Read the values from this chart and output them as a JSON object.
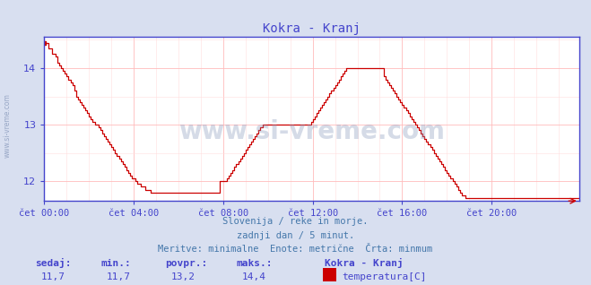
{
  "title": "Kokra - Kranj",
  "title_color": "#4444cc",
  "bg_color": "#d8dff0",
  "plot_bg_color": "#ffffff",
  "line_color": "#cc0000",
  "line_width": 1.0,
  "axis_color": "#4444cc",
  "grid_color_major": "#ffbbbb",
  "grid_color_minor": "#ffdddd",
  "xlim": [
    0,
    287
  ],
  "ylim": [
    11.65,
    14.55
  ],
  "yticks": [
    12,
    13,
    14
  ],
  "xtick_labels": [
    "čet 00:00",
    "čet 04:00",
    "čet 08:00",
    "čet 12:00",
    "čet 16:00",
    "čet 20:00"
  ],
  "xtick_positions": [
    0,
    48,
    96,
    144,
    192,
    240
  ],
  "xlabel_color": "#4444cc",
  "ylabel_color": "#4444cc",
  "watermark": "www.si-vreme.com",
  "watermark_color": "#8899bb",
  "watermark_alpha": 0.35,
  "sub_text1": "Slovenija / reke in morje.",
  "sub_text2": "zadnji dan / 5 minut.",
  "sub_text3": "Meritve: minimalne  Enote: metrične  Črta: minmum",
  "sub_text_color": "#4477aa",
  "bottom_labels": [
    "sedaj:",
    "min.:",
    "povpr.:",
    "maks.:"
  ],
  "bottom_values": [
    "11,7",
    "11,7",
    "13,2",
    "14,4"
  ],
  "bottom_station": "Kokra - Kranj",
  "bottom_measure": "temperatura[C]",
  "bottom_color": "#4444cc",
  "bottom_value_color": "#4444cc",
  "legend_rect_color": "#cc0000",
  "side_text": "www.si-vreme.com",
  "side_text_color": "#8899bb",
  "y_data": [
    14.45,
    14.45,
    14.35,
    14.35,
    14.25,
    14.25,
    14.2,
    14.1,
    14.05,
    14.0,
    13.95,
    13.9,
    13.85,
    13.8,
    13.75,
    13.7,
    13.6,
    13.5,
    13.45,
    13.4,
    13.35,
    13.3,
    13.25,
    13.2,
    13.15,
    13.1,
    13.05,
    13.0,
    13.0,
    12.95,
    12.9,
    12.85,
    12.8,
    12.75,
    12.7,
    12.65,
    12.6,
    12.55,
    12.5,
    12.45,
    12.4,
    12.35,
    12.3,
    12.25,
    12.2,
    12.15,
    12.1,
    12.05,
    12.05,
    12.0,
    11.95,
    11.95,
    11.9,
    11.9,
    11.85,
    11.85,
    11.85,
    11.8,
    11.8,
    11.8,
    11.8,
    11.8,
    11.8,
    11.8,
    11.8,
    11.8,
    11.8,
    11.8,
    11.8,
    11.8,
    11.8,
    11.8,
    11.8,
    11.8,
    11.8,
    11.8,
    11.8,
    11.8,
    11.8,
    11.8,
    11.8,
    11.8,
    11.8,
    11.8,
    11.8,
    11.8,
    11.8,
    11.8,
    11.8,
    11.8,
    11.8,
    11.8,
    11.8,
    11.8,
    12.0,
    12.0,
    12.0,
    12.0,
    12.05,
    12.1,
    12.15,
    12.2,
    12.25,
    12.3,
    12.35,
    12.4,
    12.45,
    12.5,
    12.55,
    12.6,
    12.65,
    12.7,
    12.75,
    12.8,
    12.85,
    12.9,
    12.95,
    13.0,
    13.0,
    13.0,
    13.0,
    13.0,
    13.0,
    13.0,
    13.0,
    13.0,
    13.0,
    13.0,
    13.0,
    13.0,
    13.0,
    13.0,
    13.0,
    13.0,
    13.0,
    13.0,
    13.0,
    13.0,
    13.0,
    13.0,
    13.0,
    13.0,
    13.0,
    13.05,
    13.1,
    13.15,
    13.2,
    13.25,
    13.3,
    13.35,
    13.4,
    13.45,
    13.5,
    13.55,
    13.6,
    13.65,
    13.7,
    13.75,
    13.8,
    13.85,
    13.9,
    13.95,
    14.0,
    14.0,
    14.0,
    14.0,
    14.0,
    14.0,
    14.0,
    14.0,
    14.0,
    14.0,
    14.0,
    14.0,
    14.0,
    14.0,
    14.0,
    14.0,
    14.0,
    14.0,
    14.0,
    14.0,
    13.85,
    13.8,
    13.75,
    13.7,
    13.65,
    13.6,
    13.55,
    13.5,
    13.45,
    13.4,
    13.35,
    13.3,
    13.25,
    13.2,
    13.15,
    13.1,
    13.05,
    13.0,
    12.95,
    12.9,
    12.85,
    12.8,
    12.75,
    12.7,
    12.65,
    12.6,
    12.55,
    12.5,
    12.45,
    12.4,
    12.35,
    12.3,
    12.25,
    12.2,
    12.15,
    12.1,
    12.05,
    12.0,
    11.95,
    11.9,
    11.85,
    11.8,
    11.75,
    11.75,
    11.7,
    11.7,
    11.7,
    11.7
  ]
}
